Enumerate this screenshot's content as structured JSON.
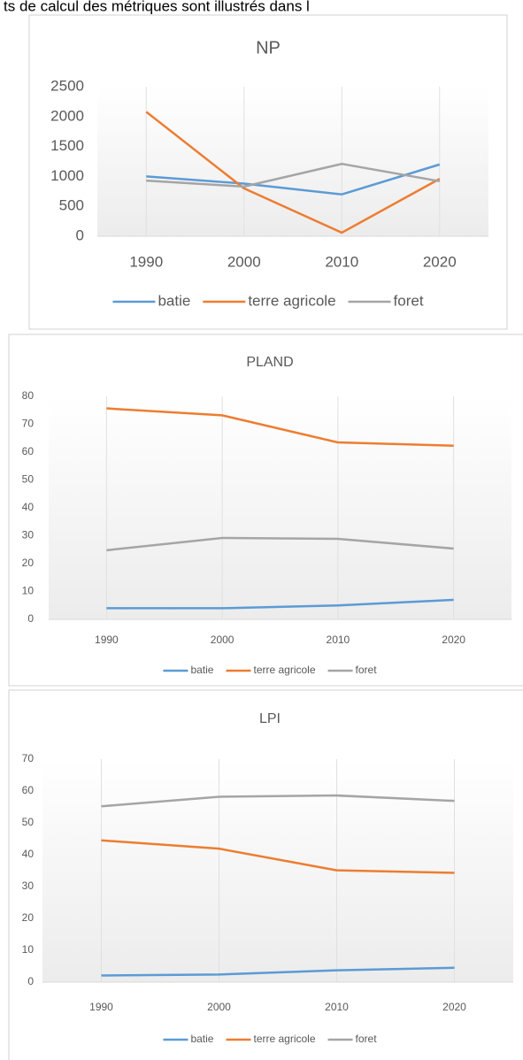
{
  "header_text": "ts de calcul des métriques sont illustrés dans l",
  "chart_data": [
    {
      "type": "line",
      "title": "NP",
      "categories": [
        "1990",
        "2000",
        "2010",
        "2020"
      ],
      "series": [
        {
          "name": "batie",
          "color": "#5b9bd5",
          "values": [
            1000,
            880,
            700,
            1200
          ]
        },
        {
          "name": "terre agricole",
          "color": "#ed7d31",
          "values": [
            2080,
            800,
            60,
            960
          ]
        },
        {
          "name": "foret",
          "color": "#a5a5a5",
          "values": [
            930,
            830,
            1210,
            920
          ]
        }
      ],
      "ylim": [
        0,
        2500
      ],
      "yticks": [
        0,
        500,
        1000,
        1500,
        2000,
        2500
      ],
      "legend": "bottom"
    },
    {
      "type": "line",
      "title": "PLAND",
      "categories": [
        "1990",
        "2000",
        "2010",
        "2020"
      ],
      "series": [
        {
          "name": "batie",
          "color": "#5b9bd5",
          "values": [
            4,
            4,
            5,
            7
          ]
        },
        {
          "name": "terre agricole",
          "color": "#ed7d31",
          "values": [
            75.7,
            73.2,
            63.5,
            62.3
          ]
        },
        {
          "name": "foret",
          "color": "#a5a5a5",
          "values": [
            24.8,
            29.2,
            28.9,
            25.4
          ]
        }
      ],
      "ylim": [
        0,
        80
      ],
      "yticks": [
        0,
        10,
        20,
        30,
        40,
        50,
        60,
        70,
        80
      ],
      "legend": "bottom"
    },
    {
      "type": "line",
      "title": "LPI",
      "categories": [
        "1990",
        "2000",
        "2010",
        "2020"
      ],
      "series": [
        {
          "name": "batie",
          "color": "#5b9bd5",
          "values": [
            2.1,
            2.4,
            3.7,
            4.5
          ]
        },
        {
          "name": "terre agricole",
          "color": "#ed7d31",
          "values": [
            44.5,
            41.9,
            35.1,
            34.3
          ]
        },
        {
          "name": "foret",
          "color": "#a5a5a5",
          "values": [
            55.2,
            58.2,
            58.6,
            56.9
          ]
        }
      ],
      "ylim": [
        0,
        70
      ],
      "yticks": [
        0,
        10,
        20,
        30,
        40,
        50,
        60,
        70
      ],
      "legend": "bottom"
    }
  ]
}
